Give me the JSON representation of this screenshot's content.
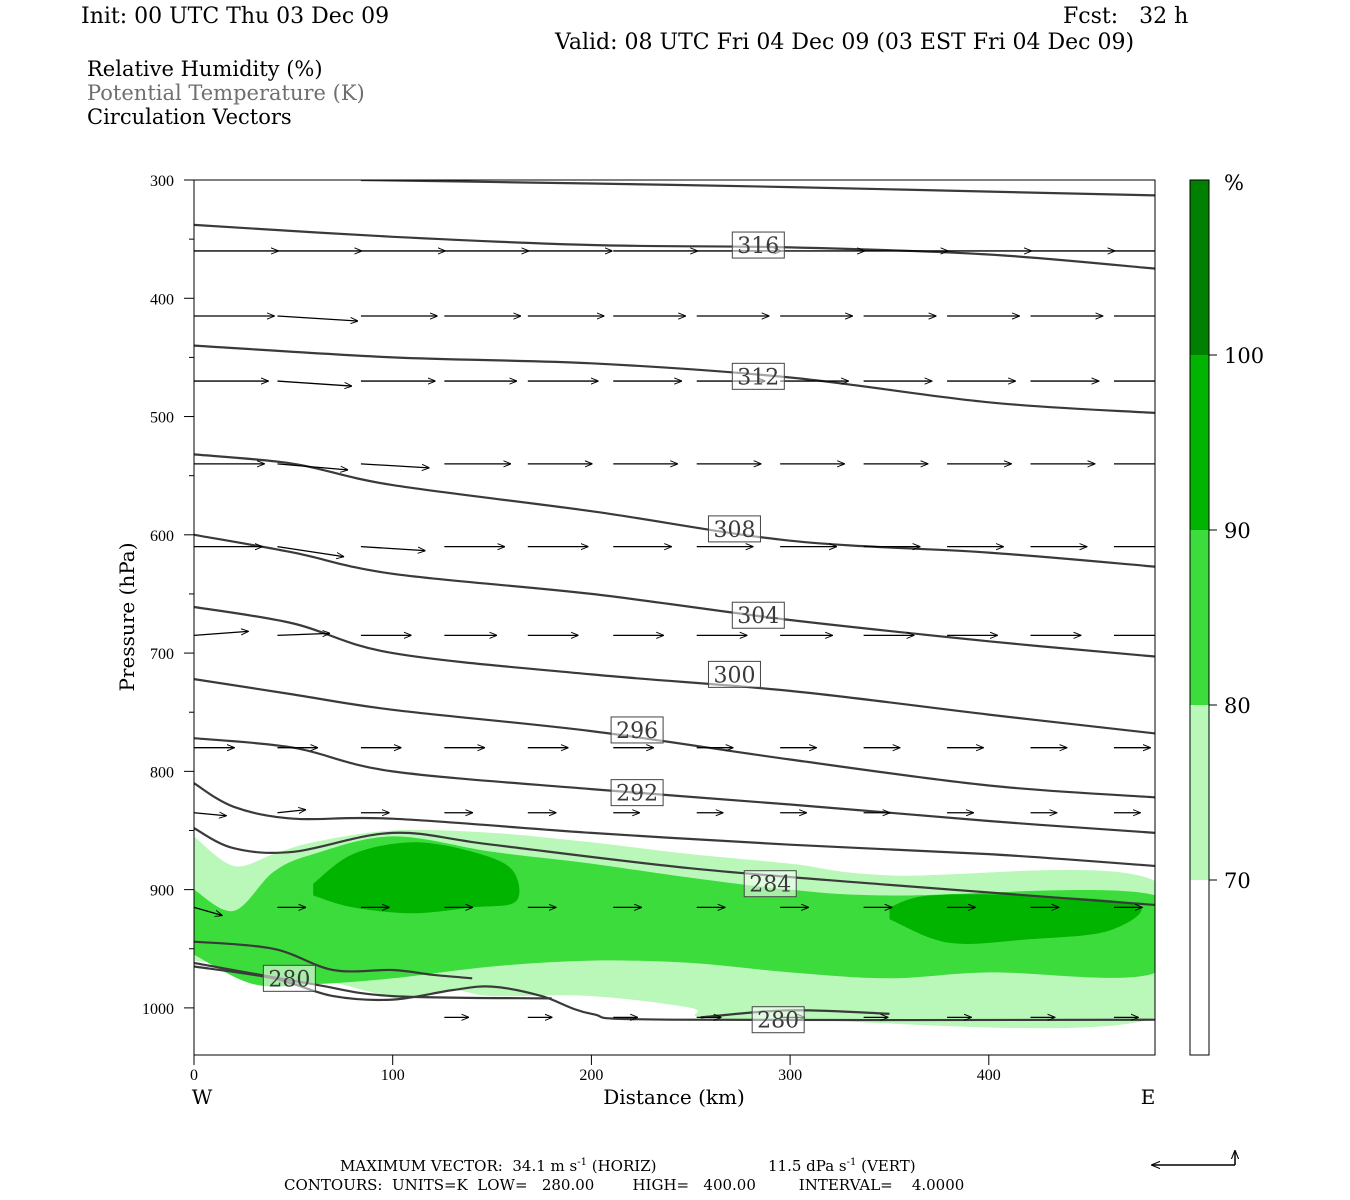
{
  "header": {
    "init": "Init: 00 UTC Thu 03 Dec 09",
    "fcst": "Fcst:   32 h",
    "valid": "Valid: 08 UTC Fri 04 Dec 09 (03 EST Fri 04 Dec 09)"
  },
  "legend": {
    "rh": "Relative Humidity (%)",
    "theta": "Potential Temperature (K)",
    "vectors": "Circulation Vectors"
  },
  "axes": {
    "xlabel": "Distance (km)",
    "ylabel": "Pressure (hPa)",
    "west": "W",
    "east": "E",
    "xticks": [
      "0",
      "100",
      "200",
      "300",
      "400"
    ],
    "yticks": [
      "300",
      "400",
      "500",
      "600",
      "700",
      "800",
      "900",
      "1000"
    ]
  },
  "colorbar": {
    "unit": "%",
    "labels": [
      "100",
      "90",
      "80",
      "70"
    ],
    "colors": [
      "#008000",
      "#00b400",
      "#3cdc3c",
      "#baf8ba",
      "#ffffff"
    ]
  },
  "footer": {
    "max_vector": "MAXIMUM VECTOR:  34.1 m s",
    "max_vector_sup": "-1",
    "max_horiz": " (HORIZ)",
    "max_vert_val": "11.5 dPa s",
    "max_vert_sup": "-1",
    "max_vert": " (VERT)",
    "contours": "CONTOURS:  UNITS=K  LOW=   280.00        HIGH=   400.00         INTERVAL=    4.0000"
  },
  "chart_data": {
    "type": "cross-section",
    "x_range_km": [
      0,
      484
    ],
    "y_range_hPa": [
      300,
      1040
    ],
    "y_scale": "pressure (increasing downward)",
    "theta_contour_labels": [
      {
        "value": "316",
        "x": 284,
        "p": 355
      },
      {
        "value": "312",
        "x": 284,
        "p": 466
      },
      {
        "value": "308",
        "x": 272,
        "p": 595
      },
      {
        "value": "304",
        "x": 284,
        "p": 668
      },
      {
        "value": "300",
        "x": 272,
        "p": 718
      },
      {
        "value": "296",
        "x": 223,
        "p": 765
      },
      {
        "value": "292",
        "x": 223,
        "p": 818
      },
      {
        "value": "284",
        "x": 290,
        "p": 895
      },
      {
        "value": "280",
        "x": 48,
        "p": 975
      },
      {
        "value": "280",
        "x": 294,
        "p": 1010
      }
    ],
    "theta_contours": [
      {
        "pts": [
          [
            84,
            300
          ],
          [
            200,
            303
          ],
          [
            300,
            306
          ],
          [
            430,
            311
          ],
          [
            484,
            313
          ]
        ]
      },
      {
        "pts": [
          [
            0,
            338
          ],
          [
            100,
            348
          ],
          [
            200,
            355
          ],
          [
            300,
            357
          ],
          [
            400,
            363
          ],
          [
            484,
            375
          ]
        ]
      },
      {
        "pts": [
          [
            0,
            440
          ],
          [
            100,
            450
          ],
          [
            200,
            455
          ],
          [
            300,
            467
          ],
          [
            400,
            488
          ],
          [
            484,
            497
          ]
        ]
      },
      {
        "pts": [
          [
            0,
            532
          ],
          [
            50,
            540
          ],
          [
            100,
            558
          ],
          [
            200,
            580
          ],
          [
            300,
            605
          ],
          [
            400,
            615
          ],
          [
            484,
            627
          ]
        ]
      },
      {
        "pts": [
          [
            0,
            600
          ],
          [
            50,
            615
          ],
          [
            100,
            633
          ],
          [
            200,
            650
          ],
          [
            300,
            672
          ],
          [
            400,
            690
          ],
          [
            484,
            703
          ]
        ]
      },
      {
        "pts": [
          [
            0,
            661
          ],
          [
            50,
            675
          ],
          [
            100,
            700
          ],
          [
            200,
            718
          ],
          [
            300,
            732
          ],
          [
            400,
            752
          ],
          [
            484,
            768
          ]
        ]
      },
      {
        "pts": [
          [
            0,
            722
          ],
          [
            50,
            735
          ],
          [
            100,
            748
          ],
          [
            200,
            766
          ],
          [
            300,
            790
          ],
          [
            400,
            812
          ],
          [
            484,
            822
          ]
        ]
      },
      {
        "pts": [
          [
            0,
            772
          ],
          [
            50,
            780
          ],
          [
            100,
            800
          ],
          [
            200,
            815
          ],
          [
            300,
            828
          ],
          [
            400,
            842
          ],
          [
            484,
            852
          ]
        ]
      },
      {
        "pts": [
          [
            0,
            810
          ],
          [
            20,
            830
          ],
          [
            50,
            840
          ],
          [
            100,
            840
          ],
          [
            200,
            852
          ],
          [
            300,
            862
          ],
          [
            400,
            870
          ],
          [
            484,
            880
          ]
        ]
      },
      {
        "pts": [
          [
            0,
            848
          ],
          [
            20,
            865
          ],
          [
            50,
            868
          ],
          [
            100,
            852
          ],
          [
            150,
            862
          ],
          [
            250,
            882
          ],
          [
            350,
            896
          ],
          [
            484,
            913
          ]
        ]
      },
      {
        "pts": [
          [
            0,
            944
          ],
          [
            40,
            950
          ],
          [
            70,
            968
          ],
          [
            100,
            968
          ],
          [
            120,
            972
          ],
          [
            140,
            975
          ]
        ]
      },
      {
        "pts": [
          [
            0,
            962
          ],
          [
            60,
            980
          ],
          [
            100,
            990
          ],
          [
            180,
            992
          ]
        ]
      },
      {
        "pts": [
          [
            0,
            965
          ],
          [
            40,
            975
          ],
          [
            70,
            990
          ],
          [
            100,
            993
          ],
          [
            130,
            985
          ],
          [
            150,
            982
          ],
          [
            175,
            990
          ],
          [
            200,
            1005
          ],
          [
            240,
            1010
          ],
          [
            484,
            1010
          ]
        ]
      }
    ],
    "ground_contour": {
      "pts": [
        [
          255,
          1008
        ],
        [
          300,
          1002
        ],
        [
          350,
          1005
        ]
      ]
    },
    "rh_fill": [
      {
        "level": "70-80",
        "color": "#baf8ba",
        "pts": [
          [
            0,
            855
          ],
          [
            20,
            880
          ],
          [
            40,
            870
          ],
          [
            60,
            860
          ],
          [
            100,
            850
          ],
          [
            150,
            852
          ],
          [
            200,
            860
          ],
          [
            250,
            870
          ],
          [
            300,
            878
          ],
          [
            350,
            888
          ],
          [
            484,
            893
          ],
          [
            484,
            1008
          ],
          [
            300,
            1010
          ],
          [
            255,
            1008
          ],
          [
            250,
            1000
          ],
          [
            200,
            990
          ],
          [
            150,
            990
          ],
          [
            130,
            985
          ],
          [
            100,
            990
          ],
          [
            50,
            970
          ],
          [
            0,
            960
          ]
        ]
      },
      {
        "level": "80-90",
        "color": "#3cdc3c",
        "pts": [
          [
            0,
            900
          ],
          [
            20,
            918
          ],
          [
            40,
            885
          ],
          [
            60,
            870
          ],
          [
            100,
            855
          ],
          [
            150,
            868
          ],
          [
            200,
            878
          ],
          [
            250,
            890
          ],
          [
            300,
            900
          ],
          [
            350,
            905
          ],
          [
            484,
            905
          ],
          [
            484,
            970
          ],
          [
            400,
            970
          ],
          [
            350,
            975
          ],
          [
            300,
            970
          ],
          [
            250,
            962
          ],
          [
            200,
            960
          ],
          [
            150,
            965
          ],
          [
            100,
            975
          ],
          [
            60,
            980
          ],
          [
            30,
            980
          ],
          [
            0,
            955
          ]
        ]
      },
      {
        "level": "90-100",
        "color": "#00b400",
        "pts": [
          [
            60,
            895
          ],
          [
            80,
            870
          ],
          [
            110,
            860
          ],
          [
            140,
            868
          ],
          [
            160,
            883
          ],
          [
            162,
            910
          ],
          [
            140,
            915
          ],
          [
            110,
            920
          ],
          [
            80,
            915
          ],
          [
            60,
            905
          ]
        ]
      },
      {
        "level": "90-100",
        "color": "#00b400",
        "pts": [
          [
            350,
            915
          ],
          [
            370,
            905
          ],
          [
            420,
            905
          ],
          [
            475,
            913
          ],
          [
            460,
            935
          ],
          [
            420,
            942
          ],
          [
            380,
            945
          ],
          [
            350,
            925
          ]
        ]
      }
    ],
    "vectors": [
      {
        "p": 360,
        "x": [
          0,
          42,
          84,
          126,
          168,
          211,
          253,
          295,
          337,
          379,
          421,
          463
        ],
        "u": [
          42,
          42,
          42,
          42,
          42,
          42,
          42,
          42,
          42,
          42,
          42,
          38
        ],
        "dy": [
          0,
          0,
          0,
          0,
          0,
          0,
          0,
          0,
          0,
          0,
          0,
          0
        ]
      },
      {
        "p": 415,
        "x": [
          0,
          42,
          84,
          126,
          168,
          211,
          253,
          295,
          337,
          379,
          421,
          463
        ],
        "u": [
          40,
          40,
          38,
          38,
          38,
          36,
          36,
          36,
          36,
          36,
          36,
          36
        ],
        "dy": [
          0,
          5,
          0,
          0,
          0,
          0,
          0,
          0,
          0,
          0,
          0,
          0
        ]
      },
      {
        "p": 470,
        "x": [
          0,
          42,
          84,
          126,
          168,
          211,
          253,
          295,
          337,
          379,
          421,
          463
        ],
        "u": [
          37,
          37,
          37,
          36,
          35,
          34,
          34,
          34,
          34,
          34,
          34,
          34
        ],
        "dy": [
          0,
          5,
          0,
          0,
          0,
          0,
          0,
          0,
          0,
          0,
          0,
          0
        ]
      },
      {
        "p": 540,
        "x": [
          0,
          42,
          84,
          126,
          168,
          211,
          253,
          295,
          337,
          379,
          421,
          463
        ],
        "u": [
          35,
          35,
          34,
          33,
          32,
          32,
          32,
          32,
          32,
          32,
          32,
          32
        ],
        "dy": [
          0,
          6,
          4,
          0,
          0,
          0,
          0,
          0,
          0,
          0,
          0,
          0
        ]
      },
      {
        "p": 610,
        "x": [
          0,
          42,
          84,
          126,
          168,
          211,
          253,
          295,
          337,
          379,
          421,
          463
        ],
        "u": [
          34,
          33,
          32,
          30,
          30,
          29,
          28,
          28,
          28,
          28,
          28,
          28
        ],
        "dy": [
          0,
          10,
          4,
          0,
          0,
          0,
          0,
          0,
          0,
          0,
          0,
          0
        ]
      },
      {
        "p": 685,
        "x": [
          0,
          42,
          84,
          126,
          168,
          211,
          253,
          295,
          337,
          379,
          421,
          463
        ],
        "u": [
          27,
          26,
          25,
          26,
          25,
          25,
          25,
          26,
          25,
          25,
          25,
          25
        ],
        "dy": [
          -4,
          -2,
          0,
          0,
          0,
          0,
          0,
          0,
          0,
          0,
          0,
          0
        ]
      },
      {
        "p": 780,
        "x": [
          0,
          42,
          84,
          126,
          168,
          211,
          253,
          295,
          337,
          379,
          421,
          463
        ],
        "u": [
          20,
          20,
          20,
          20,
          20,
          20,
          18,
          18,
          18,
          18,
          18,
          18
        ],
        "dy": [
          0,
          0,
          0,
          0,
          0,
          0,
          0,
          0,
          0,
          0,
          0,
          0
        ]
      },
      {
        "p": 835,
        "x": [
          0,
          42,
          84,
          126,
          168,
          211,
          253,
          295,
          337,
          379,
          421,
          463
        ],
        "u": [
          16,
          14,
          14,
          14,
          14,
          13,
          13,
          13,
          13,
          13,
          13,
          13
        ],
        "dy": [
          3,
          -3,
          0,
          0,
          0,
          0,
          0,
          0,
          0,
          0,
          0,
          0
        ]
      },
      {
        "p": 915,
        "x": [
          0,
          42,
          84,
          126,
          168,
          211,
          253,
          295,
          337,
          379,
          421,
          463
        ],
        "u": [
          14,
          14,
          14,
          14,
          14,
          14,
          14,
          14,
          14,
          14,
          14,
          14
        ],
        "dy": [
          8,
          0,
          0,
          0,
          0,
          0,
          0,
          0,
          0,
          0,
          0,
          0
        ]
      },
      {
        "p": 1008,
        "x": [
          126,
          168,
          211,
          253,
          295,
          337,
          379,
          421,
          463
        ],
        "u": [
          12,
          12,
          12,
          12,
          12,
          12,
          12,
          12,
          12
        ],
        "dy": [
          0,
          0,
          0,
          0,
          0,
          0,
          0,
          0,
          0
        ]
      }
    ]
  }
}
